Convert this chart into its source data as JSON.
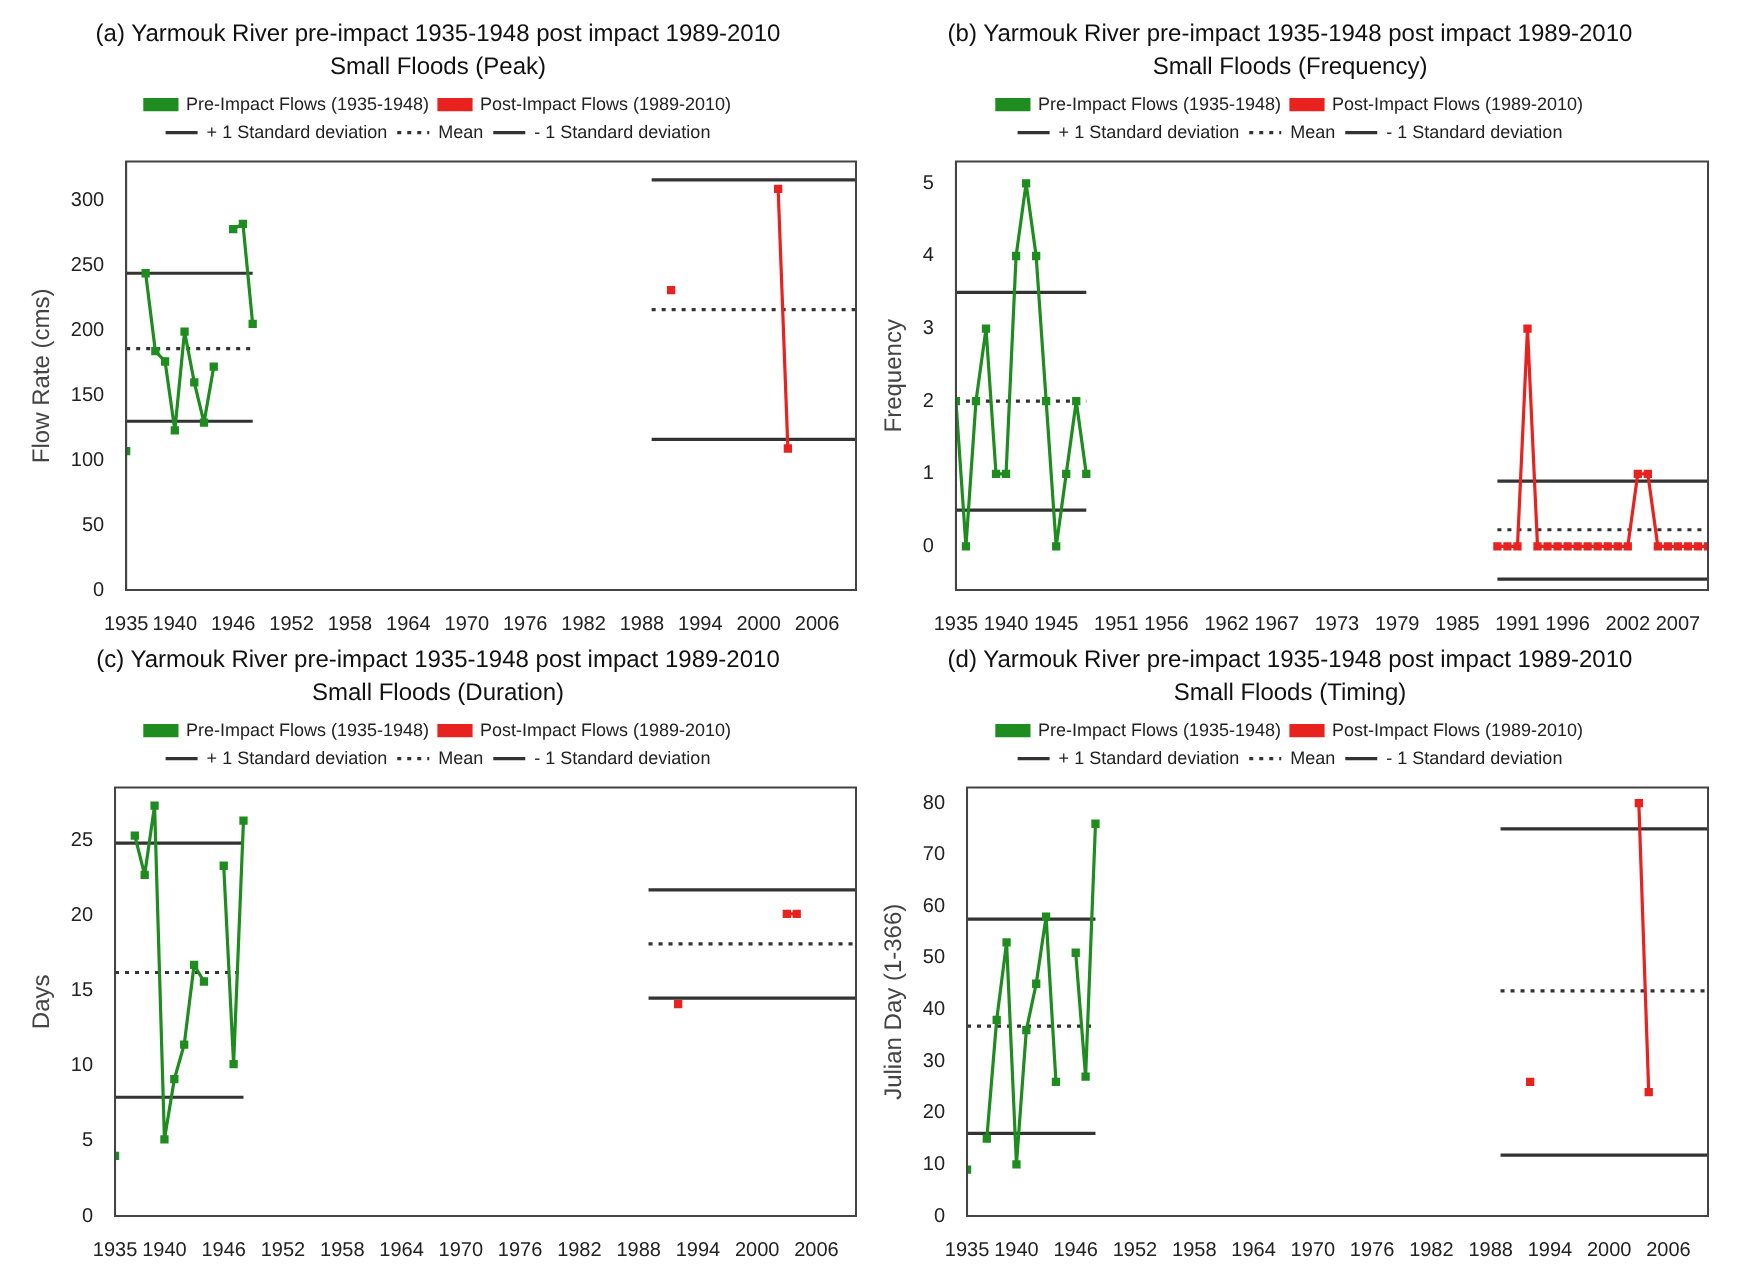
{
  "chart_data": [
    {
      "type": "line",
      "title": "(a) Yarmouk River pre-impact 1935-1948 post impact 1989-2010",
      "subtitle": "Small Floods (Peak)",
      "ylabel": "Flow Rate (cms)",
      "xlim": [
        1935,
        2010
      ],
      "xticks": [
        1935,
        1940,
        1946,
        1952,
        1958,
        1964,
        1970,
        1976,
        1982,
        1988,
        1994,
        2000,
        2006
      ],
      "ylim": [
        0,
        330
      ],
      "yticks": [
        0,
        50,
        100,
        150,
        200,
        250,
        300
      ],
      "grid": false,
      "legend": "top",
      "series": [
        {
          "name": "Pre-Impact Flows (1935-1948)",
          "color": "#1e8c1e",
          "marker": "square",
          "line_style": "solid",
          "x": [
            1935,
            1936,
            1937,
            1938,
            1939,
            1940,
            1941,
            1942,
            1943,
            1944,
            1945,
            1946,
            1947,
            1948
          ],
          "values": [
            107,
            null,
            244,
            184,
            176,
            123,
            199,
            160,
            129,
            172,
            null,
            278,
            282,
            205
          ]
        },
        {
          "name": "Post-Impact Flows (1989-2010)",
          "color": "#e8221e",
          "marker": "square",
          "line_style": "solid",
          "x": [
            1991,
            1992,
            2002,
            2003
          ],
          "values": [
            231,
            null,
            309,
            109
          ]
        },
        {
          "name": "+ 1 Standard deviation",
          "color": "#333333",
          "marker": "none",
          "line_style": "solid",
          "x": [
            1935,
            1948,
            1968,
            1989,
            2010
          ],
          "values": [
            244,
            244,
            null,
            316,
            316
          ]
        },
        {
          "name": "Mean",
          "color": "#333333",
          "marker": "none",
          "line_style": "dotted",
          "x": [
            1935,
            1948,
            1968,
            1989,
            2010
          ],
          "values": [
            186,
            186,
            null,
            216,
            216
          ]
        },
        {
          "name": "- 1 Standard deviation",
          "color": "#333333",
          "marker": "none",
          "line_style": "solid",
          "x": [
            1935,
            1948,
            1968,
            1989,
            2010
          ],
          "values": [
            130,
            130,
            null,
            116,
            116
          ]
        }
      ]
    },
    {
      "type": "line",
      "title": "(b) Yarmouk River pre-impact 1935-1948 post impact 1989-2010",
      "subtitle": "Small Floods (Frequency)",
      "ylabel": "Frequency",
      "xlim": [
        1935,
        2010
      ],
      "xticks": [
        1935,
        1940,
        1945,
        1951,
        1956,
        1962,
        1967,
        1973,
        1979,
        1985,
        1991,
        1996,
        2002,
        2007
      ],
      "ylim": [
        -0.6,
        5.3
      ],
      "yticks": [
        0,
        1,
        2,
        3,
        4,
        5
      ],
      "grid": false,
      "legend": "top",
      "series": [
        {
          "name": "Pre-Impact Flows (1935-1948)",
          "color": "#1e8c1e",
          "marker": "square",
          "line_style": "solid",
          "x": [
            1935,
            1936,
            1937,
            1938,
            1939,
            1940,
            1941,
            1942,
            1943,
            1944,
            1945,
            1946,
            1947,
            1948
          ],
          "values": [
            2,
            0,
            2,
            3,
            1,
            1,
            4,
            5,
            4,
            2,
            0,
            1,
            2,
            1
          ]
        },
        {
          "name": "Post-Impact Flows (1989-2010)",
          "color": "#e8221e",
          "marker": "square",
          "line_style": "solid",
          "x": [
            1989,
            1990,
            1991,
            1992,
            1993,
            1994,
            1995,
            1996,
            1997,
            1998,
            1999,
            2000,
            2001,
            2002,
            2003,
            2004,
            2005,
            2006,
            2007,
            2008,
            2009,
            2010
          ],
          "values": [
            0,
            0,
            0,
            3,
            0,
            0,
            0,
            0,
            0,
            0,
            0,
            0,
            0,
            0,
            1,
            1,
            0,
            0,
            0,
            0,
            0,
            0
          ]
        },
        {
          "name": "+ 1 Standard deviation",
          "color": "#333333",
          "marker": "none",
          "line_style": "solid",
          "x": [
            1935,
            1948,
            1968,
            1989,
            2010
          ],
          "values": [
            3.5,
            3.5,
            null,
            0.9,
            0.9
          ]
        },
        {
          "name": "Mean",
          "color": "#333333",
          "marker": "none",
          "line_style": "dotted",
          "x": [
            1935,
            1948,
            1968,
            1989,
            2010
          ],
          "values": [
            2,
            2,
            null,
            0.23,
            0.23
          ]
        },
        {
          "name": "- 1 Standard deviation",
          "color": "#333333",
          "marker": "none",
          "line_style": "solid",
          "x": [
            1935,
            1948,
            1968,
            1989,
            2010
          ],
          "values": [
            0.5,
            0.5,
            null,
            -0.45,
            -0.45
          ]
        }
      ]
    },
    {
      "type": "line",
      "title": "(c) Yarmouk River pre-impact 1935-1948 post impact 1989-2010",
      "subtitle": "Small Floods (Duration)",
      "ylabel": "Days",
      "xlim": [
        1935,
        2010
      ],
      "xticks": [
        1935,
        1940,
        1946,
        1952,
        1958,
        1964,
        1970,
        1976,
        1982,
        1988,
        1994,
        2000,
        2006
      ],
      "ylim": [
        0,
        28.5
      ],
      "yticks": [
        0,
        5,
        10,
        15,
        20,
        25
      ],
      "grid": false,
      "legend": "top",
      "series": [
        {
          "name": "Pre-Impact Flows (1935-1948)",
          "color": "#1e8c1e",
          "marker": "square",
          "line_style": "solid",
          "x": [
            1935,
            1936,
            1937,
            1938,
            1939,
            1940,
            1941,
            1942,
            1943,
            1944,
            1945,
            1946,
            1947,
            1948
          ],
          "values": [
            4,
            null,
            25.3,
            22.7,
            27.3,
            5.1,
            9.1,
            11.4,
            16.7,
            15.6,
            null,
            23.3,
            10.1,
            26.3
          ]
        },
        {
          "name": "Post-Impact Flows (1989-2010)",
          "color": "#e8221e",
          "marker": "square",
          "line_style": "solid",
          "x": [
            1992,
            1993,
            2003,
            2004
          ],
          "values": [
            14.1,
            null,
            20.1,
            20.1
          ]
        },
        {
          "name": "+ 1 Standard deviation",
          "color": "#333333",
          "marker": "none",
          "line_style": "solid",
          "x": [
            1935,
            1948,
            1968,
            1989,
            2010
          ],
          "values": [
            24.8,
            24.8,
            null,
            21.7,
            21.7
          ]
        },
        {
          "name": "Mean",
          "color": "#333333",
          "marker": "none",
          "line_style": "dotted",
          "x": [
            1935,
            1948,
            1968,
            1989,
            2010
          ],
          "values": [
            16.2,
            16.2,
            null,
            18.1,
            18.1
          ]
        },
        {
          "name": "- 1 Standard deviation",
          "color": "#333333",
          "marker": "none",
          "line_style": "solid",
          "x": [
            1935,
            1948,
            1968,
            1989,
            2010
          ],
          "values": [
            7.9,
            7.9,
            null,
            14.5,
            14.5
          ]
        }
      ]
    },
    {
      "type": "line",
      "title": "(d) Yarmouk River pre-impact 1935-1948 post impact 1989-2010",
      "subtitle": "Small Floods (Timing)",
      "ylabel": "Julian Day (1-366)",
      "xlim": [
        1935,
        2010
      ],
      "xticks": [
        1935,
        1940,
        1946,
        1952,
        1958,
        1964,
        1970,
        1976,
        1982,
        1988,
        1994,
        2000,
        2006
      ],
      "ylim": [
        0,
        83
      ],
      "yticks": [
        0,
        10,
        20,
        30,
        40,
        50,
        60,
        70,
        80
      ],
      "grid": false,
      "legend": "top",
      "series": [
        {
          "name": "Pre-Impact Flows (1935-1948)",
          "color": "#1e8c1e",
          "marker": "square",
          "line_style": "solid",
          "x": [
            1935,
            1936,
            1937,
            1938,
            1939,
            1940,
            1941,
            1942,
            1943,
            1944,
            1945,
            1946,
            1947,
            1948
          ],
          "values": [
            9,
            null,
            15,
            38,
            53,
            10,
            36,
            45,
            58,
            26,
            null,
            51,
            27,
            76
          ]
        },
        {
          "name": "Post-Impact Flows (1989-2010)",
          "color": "#e8221e",
          "marker": "square",
          "line_style": "solid",
          "x": [
            1992,
            1993,
            2003,
            2004
          ],
          "values": [
            26,
            null,
            80,
            24
          ]
        },
        {
          "name": "+ 1 Standard deviation",
          "color": "#333333",
          "marker": "none",
          "line_style": "solid",
          "x": [
            1935,
            1948,
            1968,
            1989,
            2010
          ],
          "values": [
            57.5,
            57.5,
            null,
            75,
            75
          ]
        },
        {
          "name": "Mean",
          "color": "#333333",
          "marker": "none",
          "line_style": "dotted",
          "x": [
            1935,
            1948,
            1968,
            1989,
            2010
          ],
          "values": [
            36.8,
            36.8,
            null,
            43.6,
            43.6
          ]
        },
        {
          "name": "- 1 Standard deviation",
          "color": "#333333",
          "marker": "none",
          "line_style": "solid",
          "x": [
            1935,
            1948,
            1968,
            1989,
            2010
          ],
          "values": [
            16,
            16,
            null,
            11.8,
            11.8
          ]
        }
      ]
    }
  ]
}
